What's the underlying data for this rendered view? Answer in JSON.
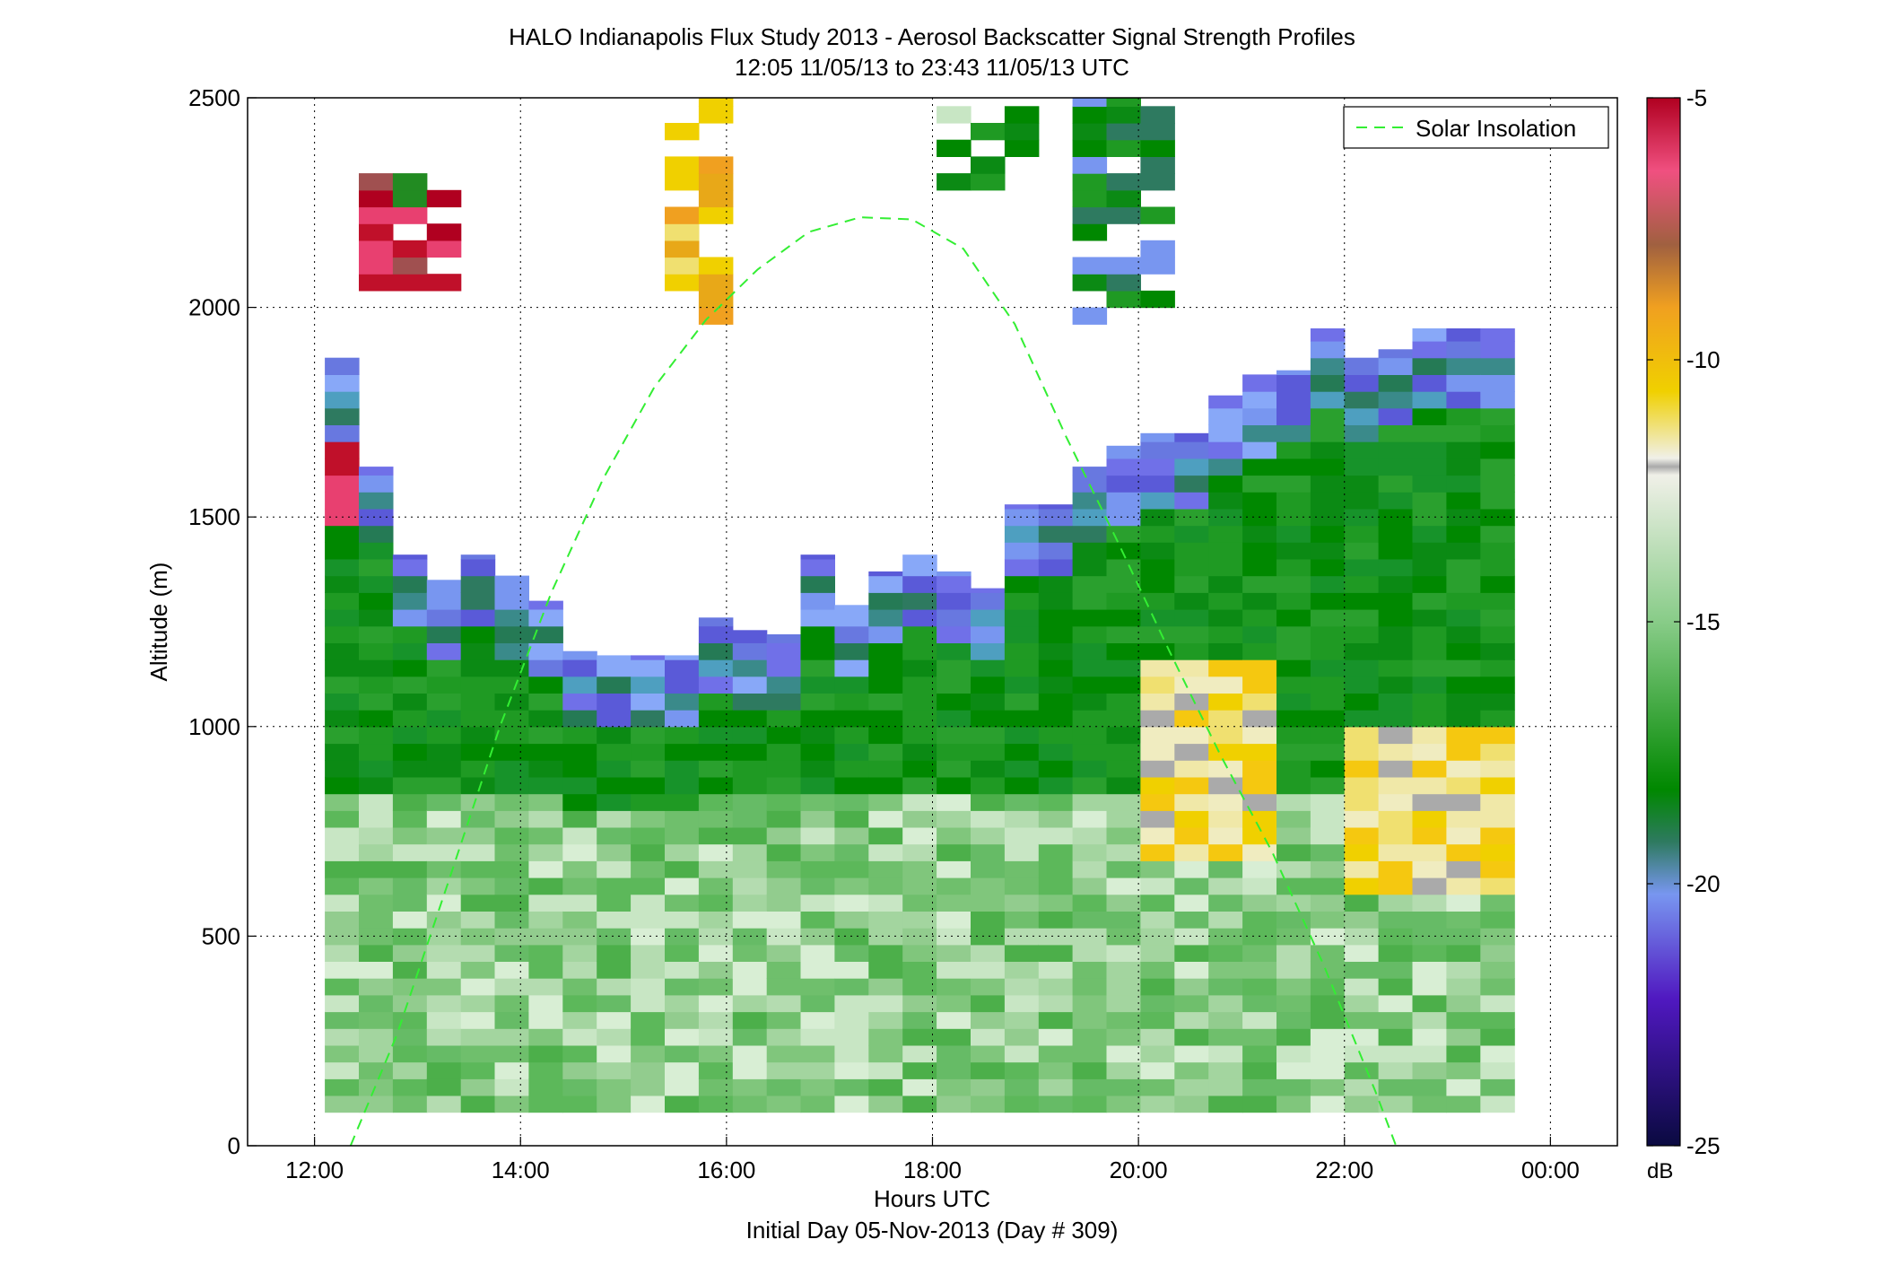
{
  "chart_data": {
    "type": "heatmap",
    "title": "HALO Indianapolis Flux Study 2013 - Aerosol Backscatter Signal Strength Profiles",
    "subtitle": "12:05 11/05/13 to 23:43 11/05/13  UTC",
    "xlabel": "Hours UTC",
    "xlabel2": "Initial Day 05-Nov-2013 (Day # 309)",
    "ylabel": "Altitude (m)",
    "xlim": [
      11.35,
      24.65
    ],
    "ylim": [
      0,
      2500
    ],
    "x_ticks": [
      {
        "value": 12,
        "label": "12:00"
      },
      {
        "value": 14,
        "label": "14:00"
      },
      {
        "value": 16,
        "label": "16:00"
      },
      {
        "value": 18,
        "label": "18:00"
      },
      {
        "value": 20,
        "label": "20:00"
      },
      {
        "value": 22,
        "label": "22:00"
      },
      {
        "value": 24,
        "label": "00:00"
      }
    ],
    "y_ticks": [
      {
        "value": 0,
        "label": "0"
      },
      {
        "value": 500,
        "label": "500"
      },
      {
        "value": 1000,
        "label": "1000"
      },
      {
        "value": 1500,
        "label": "1500"
      },
      {
        "value": 2000,
        "label": "2000"
      },
      {
        "value": 2500,
        "label": "2500"
      }
    ],
    "grid": "dotted",
    "colorbar": {
      "label": "dB",
      "range": [
        -25,
        -5
      ],
      "ticks": [
        {
          "value": -5,
          "label": "-5"
        },
        {
          "value": -10,
          "label": "-10"
        },
        {
          "value": -15,
          "label": "-15"
        },
        {
          "value": -20,
          "label": "-20"
        },
        {
          "value": -25,
          "label": "-25"
        }
      ]
    },
    "legend": {
      "position": "top-right",
      "entries": [
        {
          "label": "Solar Insolation",
          "style": "dashed",
          "color": "#33ee33"
        }
      ]
    },
    "solar_insolation_curve": {
      "color": "#33ee33",
      "x": [
        12.35,
        12.8,
        13.3,
        13.8,
        14.3,
        14.8,
        15.3,
        15.8,
        16.3,
        16.8,
        17.3,
        17.8,
        18.3,
        18.8,
        19.3,
        19.8,
        20.3,
        20.8,
        21.3,
        21.8,
        22.3,
        22.5
      ],
      "y": [
        0,
        265,
        630,
        1000,
        1320,
        1590,
        1810,
        1970,
        2090,
        2180,
        2215,
        2210,
        2140,
        1960,
        1690,
        1440,
        1180,
        930,
        700,
        430,
        130,
        0
      ]
    },
    "profiles": {
      "bin_width_hours": 0.33,
      "bin_height_m": 40,
      "x_start": [
        12.1,
        12.43,
        12.76,
        13.09,
        13.42,
        13.75,
        14.08,
        14.41,
        14.74,
        15.07,
        15.4,
        15.73,
        16.06,
        16.39,
        16.72,
        17.05,
        17.38,
        17.71,
        18.04,
        18.37,
        18.7,
        19.03,
        19.36,
        19.69,
        20.02,
        20.35,
        20.68,
        21.01,
        21.34,
        21.67,
        22.0,
        22.33,
        22.66,
        22.99,
        23.32
      ],
      "top_of_data_m": [
        1880,
        1620,
        1410,
        1350,
        1410,
        1360,
        1300,
        1180,
        1170,
        1170,
        1170,
        1260,
        1230,
        1220,
        1410,
        1290,
        1370,
        1410,
        1370,
        1330,
        1530,
        1530,
        1620,
        1670,
        1700,
        1700,
        1790,
        1840,
        1850,
        1950,
        1880,
        1900,
        1950,
        1950,
        1950
      ],
      "aloft_layers": [
        {
          "x_start": 12.43,
          "x_end": 13.42,
          "y_bottom": 2040,
          "y_top": 2300
        },
        {
          "x_start": 15.4,
          "x_end": 16.06,
          "y_bottom": 1960,
          "y_top": 2500
        },
        {
          "x_start": 18.04,
          "x_end": 19.03,
          "y_bottom": 2280,
          "y_top": 2500
        },
        {
          "x_start": 19.36,
          "x_end": 20.35,
          "y_bottom": 1960,
          "y_top": 2500
        }
      ]
    }
  }
}
